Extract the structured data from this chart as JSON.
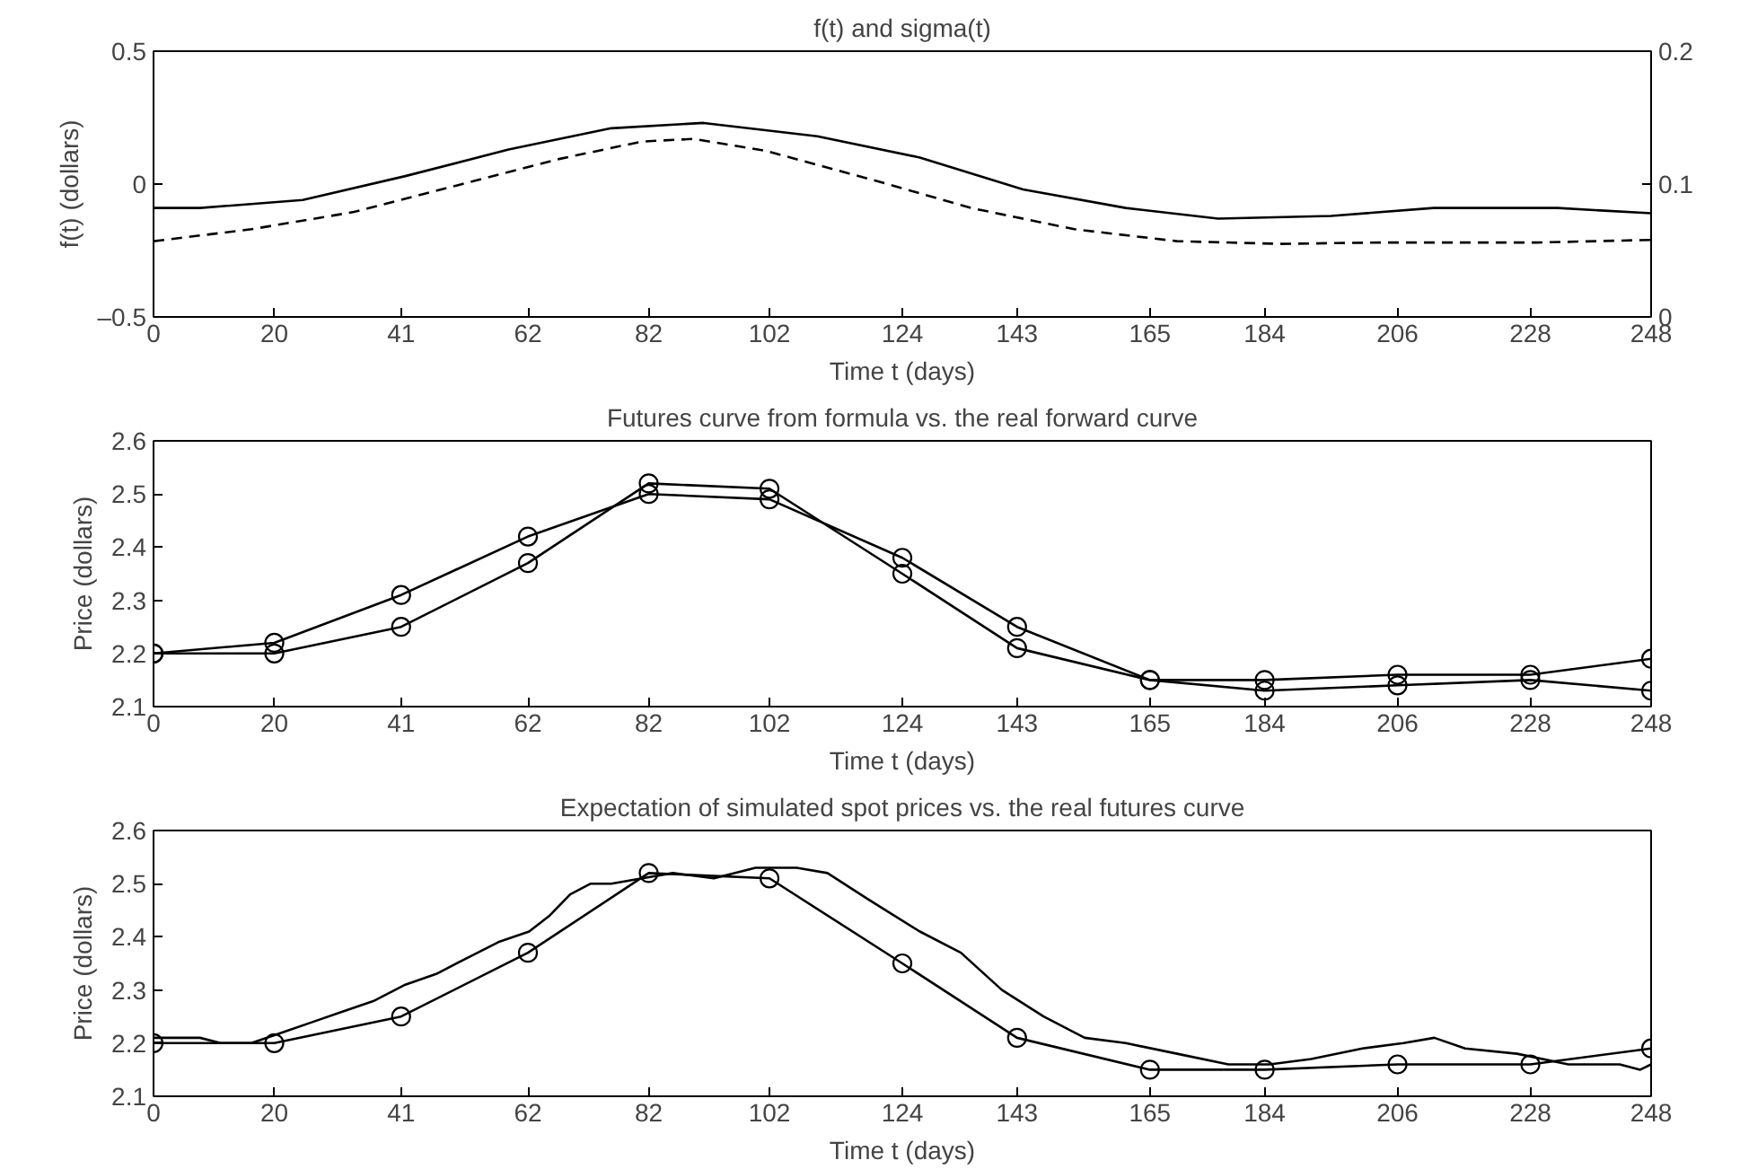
{
  "chart_data": [
    {
      "type": "line",
      "title": "f(t) and sigma(t)",
      "xlabel": "Time t (days)",
      "ylabel": "f(t) (dollars)",
      "xlim": [
        0,
        248
      ],
      "xticks": [
        0,
        20,
        41,
        62,
        82,
        102,
        124,
        143,
        165,
        184,
        206,
        228,
        248
      ],
      "ylim": [
        -0.5,
        0.5
      ],
      "yticks": [
        {
          "value": -0.5,
          "label": "–0.5"
        },
        0,
        0.5
      ],
      "y2lim": [
        0,
        0.2
      ],
      "y2ticks": [
        0,
        0.1,
        0.2
      ],
      "grid": false,
      "series": [
        {
          "color": "#000000",
          "line_style": "solid",
          "marker": "none",
          "x": [
            0,
            7.7,
            24.7,
            41.7,
            58.8,
            75.8,
            91.1,
            109.9,
            126.9,
            144,
            161,
            176.3,
            195,
            212,
            222.3,
            232.5,
            248
          ],
          "values": [
            -0.09,
            -0.09,
            -0.06,
            0.03,
            0.13,
            0.21,
            0.23,
            0.18,
            0.1,
            -0.02,
            -0.09,
            -0.13,
            -0.12,
            -0.09,
            -0.09,
            -0.09,
            -0.11
          ]
        },
        {
          "color": "#000000",
          "line_style": "dashed",
          "marker": "none",
          "axis": "y2",
          "x": [
            0,
            16.2,
            33.2,
            50.3,
            67.3,
            80.9,
            89.4,
            101.4,
            118.4,
            135.4,
            152.5,
            169.5,
            186.5,
            203.6,
            229.1,
            248
          ],
          "values": [
            0.057,
            0.066,
            0.079,
            0.099,
            0.119,
            0.132,
            0.134,
            0.125,
            0.104,
            0.082,
            0.066,
            0.057,
            0.055,
            0.056,
            0.056,
            0.058
          ]
        }
      ]
    },
    {
      "type": "line",
      "title": "Futures curve from formula vs. the real forward curve",
      "xlabel": "Time t (days)",
      "ylabel": "Price (dollars)",
      "xlim": [
        0,
        248
      ],
      "xticks": [
        0,
        20,
        41,
        62,
        82,
        102,
        124,
        143,
        165,
        184,
        206,
        228,
        248
      ],
      "ylim": [
        2.1,
        2.6
      ],
      "yticks": [
        2.1,
        2.2,
        2.3,
        2.4,
        2.5,
        2.6
      ],
      "grid": false,
      "series": [
        {
          "color": "#000000",
          "line_style": "solid",
          "marker": "circle",
          "x": [
            0,
            20,
            41,
            62,
            82,
            102,
            124,
            143,
            165,
            184,
            206,
            228,
            248
          ],
          "values": [
            2.2,
            2.22,
            2.31,
            2.42,
            2.5,
            2.49,
            2.38,
            2.25,
            2.15,
            2.15,
            2.16,
            2.16,
            2.19
          ]
        },
        {
          "color": "#000000",
          "line_style": "solid",
          "marker": "circle",
          "x": [
            0,
            20,
            41,
            62,
            82,
            102,
            124,
            143,
            165,
            184,
            206,
            228,
            248
          ],
          "values": [
            2.2,
            2.2,
            2.25,
            2.37,
            2.52,
            2.51,
            2.35,
            2.21,
            2.15,
            2.13,
            2.14,
            2.15,
            2.13
          ]
        }
      ]
    },
    {
      "type": "line",
      "title": "Expectation of simulated spot prices vs. the real futures curve",
      "xlabel": "Time t (days)",
      "ylabel": "Price (dollars)",
      "xlim": [
        0,
        248
      ],
      "xticks": [
        0,
        20,
        41,
        62,
        82,
        102,
        124,
        143,
        165,
        184,
        206,
        228,
        248
      ],
      "ylim": [
        2.1,
        2.6
      ],
      "yticks": [
        2.1,
        2.2,
        2.3,
        2.4,
        2.5,
        2.6
      ],
      "grid": false,
      "series": [
        {
          "color": "#000000",
          "line_style": "solid",
          "marker": "none",
          "x": [
            0,
            7.7,
            11.1,
            16.2,
            21.3,
            26.4,
            31.5,
            36.6,
            41.7,
            46.8,
            51.9,
            57.1,
            62.2,
            65.6,
            69,
            72.4,
            75.8,
            80.9,
            86,
            92.8,
            99.7,
            106.5,
            111.6,
            118.4,
            126.9,
            133.7,
            140.5,
            147.4,
            154.2,
            161,
            169.5,
            178,
            184.8,
            191.7,
            200.2,
            207,
            212.1,
            217.2,
            225.8,
            234.3,
            242.8,
            246.2,
            248
          ],
          "values": [
            2.21,
            2.21,
            2.2,
            2.2,
            2.22,
            2.24,
            2.26,
            2.28,
            2.31,
            2.33,
            2.36,
            2.39,
            2.41,
            2.44,
            2.48,
            2.5,
            2.5,
            2.51,
            2.52,
            2.51,
            2.53,
            2.53,
            2.52,
            2.47,
            2.41,
            2.37,
            2.3,
            2.25,
            2.21,
            2.2,
            2.18,
            2.16,
            2.16,
            2.17,
            2.19,
            2.2,
            2.21,
            2.19,
            2.18,
            2.16,
            2.16,
            2.15,
            2.16
          ]
        },
        {
          "color": "#000000",
          "line_style": "solid",
          "marker": "circle",
          "x": [
            0,
            20,
            41,
            62,
            82,
            102,
            124,
            143,
            165,
            184,
            206,
            228,
            248
          ],
          "values": [
            2.2,
            2.2,
            2.25,
            2.37,
            2.52,
            2.51,
            2.35,
            2.21,
            2.15,
            2.15,
            2.16,
            2.16,
            2.19
          ]
        }
      ]
    }
  ]
}
